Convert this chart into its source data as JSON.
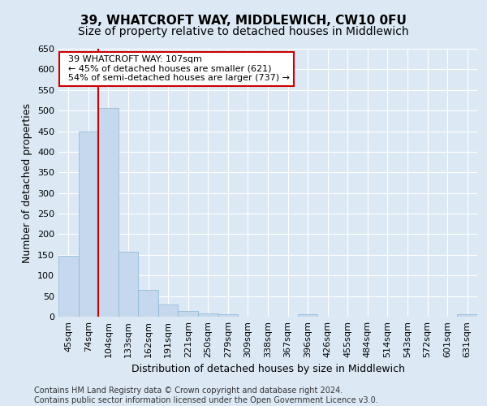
{
  "title": "39, WHATCROFT WAY, MIDDLEWICH, CW10 0FU",
  "subtitle": "Size of property relative to detached houses in Middlewich",
  "xlabel": "Distribution of detached houses by size in Middlewich",
  "ylabel": "Number of detached properties",
  "footnote": "Contains HM Land Registry data © Crown copyright and database right 2024.\nContains public sector information licensed under the Open Government Licence v3.0.",
  "categories": [
    "45sqm",
    "74sqm",
    "104sqm",
    "133sqm",
    "162sqm",
    "191sqm",
    "221sqm",
    "250sqm",
    "279sqm",
    "309sqm",
    "338sqm",
    "367sqm",
    "396sqm",
    "426sqm",
    "455sqm",
    "484sqm",
    "514sqm",
    "543sqm",
    "572sqm",
    "601sqm",
    "631sqm"
  ],
  "values": [
    147,
    449,
    507,
    158,
    65,
    30,
    13,
    8,
    5,
    0,
    0,
    0,
    5,
    0,
    0,
    0,
    0,
    0,
    0,
    0,
    5
  ],
  "bar_color": "#c5d8ed",
  "bar_edge_color": "#8ab4d4",
  "vline_x_index": 2,
  "vline_color": "#cc0000",
  "annotation_text": "  39 WHATCROFT WAY: 107sqm\n  ← 45% of detached houses are smaller (621)\n  54% of semi-detached houses are larger (737) →",
  "annotation_box_color": "#ffffff",
  "annotation_box_edge": "#cc0000",
  "ylim": [
    0,
    650
  ],
  "yticks": [
    0,
    50,
    100,
    150,
    200,
    250,
    300,
    350,
    400,
    450,
    500,
    550,
    600,
    650
  ],
  "background_color": "#dce9f5",
  "plot_bg_color": "#dce9f5",
  "title_fontsize": 11,
  "subtitle_fontsize": 10,
  "axis_label_fontsize": 9,
  "tick_fontsize": 8,
  "footnote_fontsize": 7,
  "annotation_fontsize": 8
}
